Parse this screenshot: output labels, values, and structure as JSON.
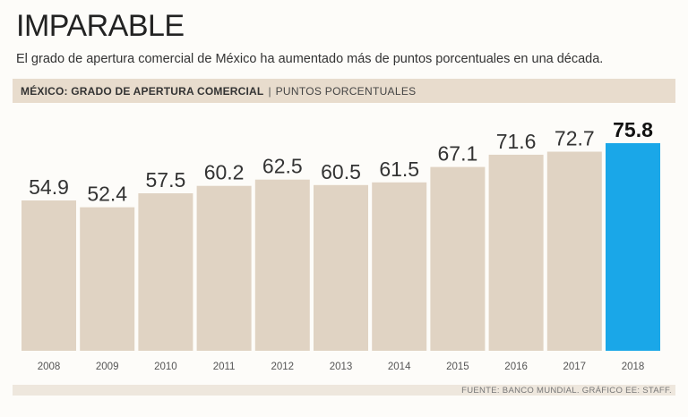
{
  "header": {
    "title": "IMPARABLE",
    "subtitle": "El grado de apertura comercial de México ha aumentado más de puntos porcentuales en una década."
  },
  "band": {
    "label": "MÉXICO: GRADO DE APERTURA COMERCIAL",
    "separator": "|",
    "unit": "PUNTOS PORCENTUALES"
  },
  "footer": {
    "source": "FUENTE: BANCO MUNDIAL. GRÁFICO EE: STAFF."
  },
  "colors": {
    "bar": "#e0d3c3",
    "highlight": "#1aa7e8",
    "band": "#e8dccd"
  },
  "chart_data": {
    "type": "bar",
    "title": "MÉXICO: GRADO DE APERTURA COMERCIAL",
    "ylabel": "PUNTOS PORCENTUALES",
    "xlabel": "",
    "categories": [
      "2008",
      "2009",
      "2010",
      "2011",
      "2012",
      "2013",
      "2014",
      "2015",
      "2016",
      "2017",
      "2018"
    ],
    "values": [
      54.9,
      52.4,
      57.5,
      60.2,
      62.5,
      60.5,
      61.5,
      67.1,
      71.6,
      72.7,
      75.8
    ],
    "value_labels": [
      "54.9",
      "52.4",
      "57.5",
      "60.2",
      "62.5",
      "60.5",
      "61.5",
      "67.1",
      "71.6",
      "72.7",
      "75.8"
    ],
    "highlight_index": 10,
    "ylim": [
      0,
      75.8
    ],
    "grid": false
  }
}
